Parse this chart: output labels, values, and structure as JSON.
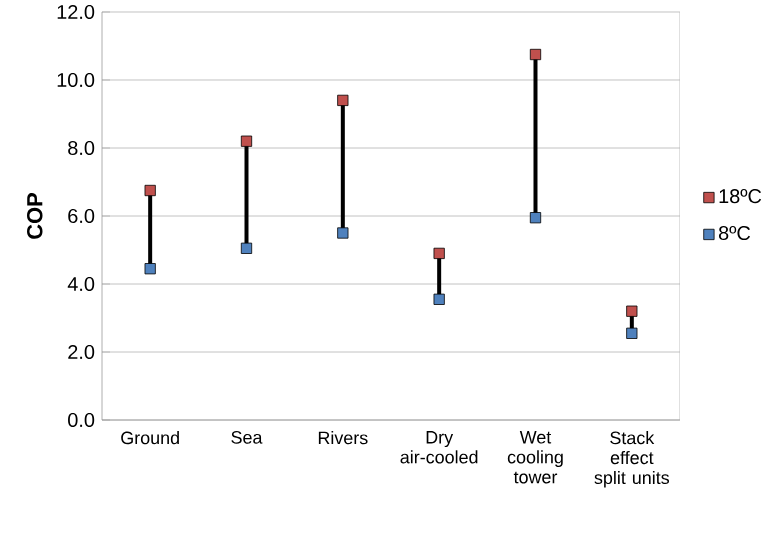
{
  "chart_data": {
    "type": "scatter",
    "ylabel": "COP",
    "categories": [
      "Ground",
      "Sea",
      "Rivers",
      "Dry air-cooled",
      "Wet cooling tower",
      "Stack effect split units"
    ],
    "series": [
      {
        "name": "18ºC",
        "color": "#c0504d",
        "values": [
          6.75,
          8.2,
          9.4,
          4.9,
          10.75,
          3.2
        ]
      },
      {
        "name": "8ºC",
        "color": "#4f81bd",
        "values": [
          4.45,
          5.05,
          5.5,
          3.55,
          5.95,
          2.55
        ]
      }
    ],
    "ylim": [
      0,
      12
    ],
    "yticks": [
      {
        "value": 0,
        "label": "0.0"
      },
      {
        "value": 2,
        "label": "2.0"
      },
      {
        "value": 4,
        "label": "4.0"
      },
      {
        "value": 6,
        "label": "6.0"
      },
      {
        "value": 8,
        "label": "8.0"
      },
      {
        "value": 10,
        "label": "10.0"
      },
      {
        "value": 12,
        "label": "12.0"
      }
    ],
    "grid": "y",
    "legend": "right",
    "marker": "square"
  }
}
